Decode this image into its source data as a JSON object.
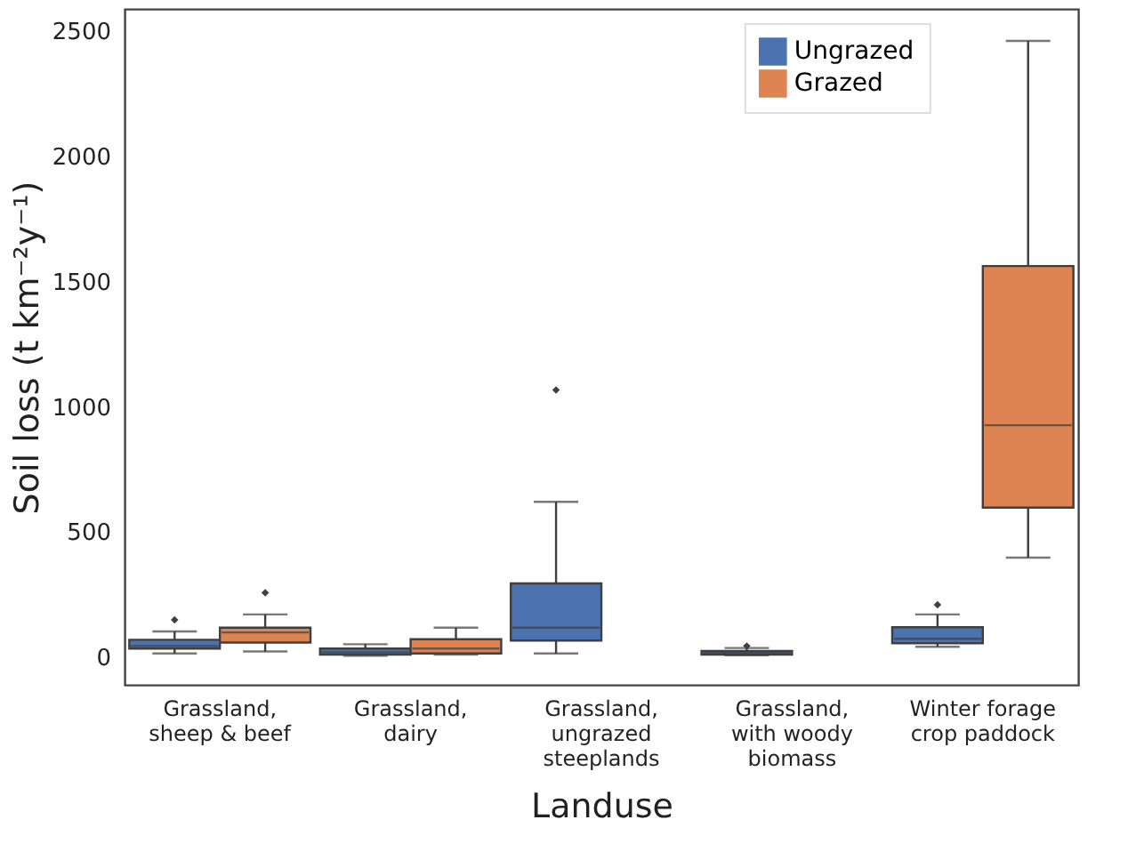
{
  "chart_data": {
    "type": "box",
    "xlabel": "Landuse",
    "ylabel": "Soil loss (t km⁻²y⁻¹)",
    "categories": [
      "Grassland,\nsheep & beef",
      "Grassland,\ndairy",
      "Grassland,\nungrazed\nsteeplands",
      "Grassland,\nwith woody\nbiomass",
      "Winter forage\ncrop paddock"
    ],
    "series": [
      {
        "name": "Ungrazed",
        "color": "#4c72b0",
        "boxes": [
          {
            "low": 15,
            "q1": 35,
            "median": 45,
            "q3": 70,
            "high": 103,
            "outliers": [
              149
            ]
          },
          {
            "low": 6,
            "q1": 11,
            "median": 20,
            "q3": 35,
            "high": 52
          },
          {
            "low": 15,
            "q1": 67,
            "median": 118,
            "q3": 295,
            "high": 621,
            "outliers": [
              1068
            ]
          },
          {
            "low": 8,
            "q1": 11,
            "median": 18,
            "q3": 25,
            "high": 37,
            "outliers": [
              45
            ]
          },
          {
            "low": 42,
            "q1": 56,
            "median": 74,
            "q3": 120,
            "high": 171,
            "outliers": [
              210
            ]
          }
        ]
      },
      {
        "name": "Grazed",
        "color": "#dd8452",
        "boxes": [
          {
            "low": 23,
            "q1": 59,
            "median": 99,
            "q3": 118,
            "high": 171,
            "outliers": [
              258
            ]
          },
          {
            "low": 11,
            "q1": 15,
            "median": 35,
            "q3": 72,
            "high": 118
          },
          null,
          null,
          {
            "low": 398,
            "q1": 598,
            "median": 927,
            "q3": 1563,
            "high": 2462
          }
        ]
      }
    ],
    "ylim": [
      -110,
      2590
    ],
    "yticks": [
      0,
      500,
      1000,
      1500,
      2000,
      2500
    ],
    "grid": false,
    "legend": "top right"
  }
}
